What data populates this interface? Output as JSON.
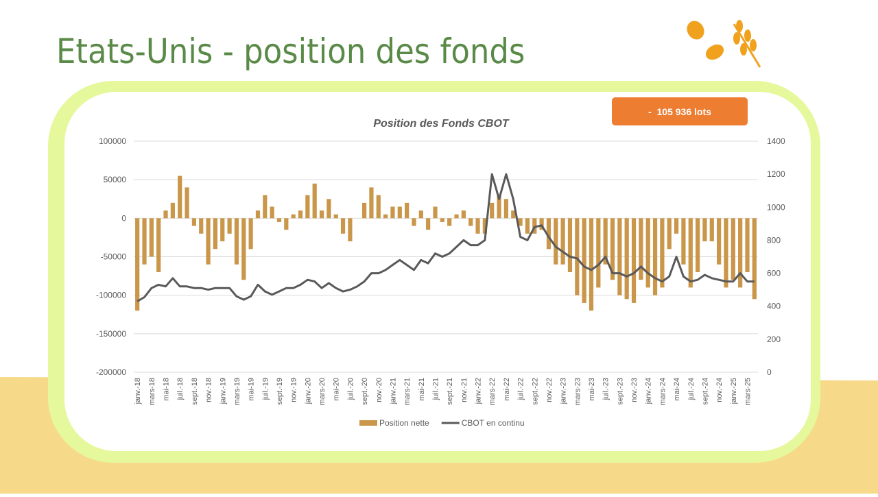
{
  "header": {
    "title": "Etats-Unis - position des fonds",
    "badge": "-  105 936 lots"
  },
  "chart_data": {
    "type": "combo",
    "title": "Position des Fonds CBOT",
    "categories": [
      "janv.-18",
      null,
      "mars-18",
      null,
      "mai-18",
      null,
      "juil.-18",
      null,
      "sept.-18",
      null,
      "nov.-18",
      null,
      "janv.-19",
      null,
      "mars-19",
      null,
      "mai-19",
      null,
      "juil.-19",
      null,
      "sept.-19",
      null,
      "nov.-19",
      null,
      "janv.-20",
      null,
      "mars-20",
      null,
      "mai-20",
      null,
      "juil.-20",
      null,
      "sept.-20",
      null,
      "nov.-20",
      null,
      "janv.-21",
      null,
      "mars-21",
      null,
      "mai-21",
      null,
      "juil.-21",
      null,
      "sept.-21",
      null,
      "nov.-21",
      null,
      "janv.-22",
      null,
      "mars-22",
      null,
      "mai-22",
      null,
      "juil.-22",
      null,
      "sept.-22",
      null,
      "nov.-22",
      null,
      "janv.-23",
      null,
      "mars-23",
      null,
      "mai-23",
      null,
      "juil.-23",
      null,
      "sept.-23",
      null,
      "nov.-23",
      null,
      "janv.-24",
      null,
      "mars-24",
      null,
      "mai-24",
      null,
      "juil.-24",
      null,
      "sept.-24",
      null,
      "nov.-24",
      null,
      "janv.-25",
      null,
      "mars-25",
      null
    ],
    "series": [
      {
        "name": "Position nette",
        "type": "bar",
        "color": "#c9964a",
        "values": [
          -120000,
          -60000,
          -50000,
          -70000,
          10000,
          20000,
          55000,
          40000,
          -10000,
          -20000,
          -60000,
          -40000,
          -30000,
          -20000,
          -60000,
          -80000,
          -40000,
          10000,
          30000,
          15000,
          -5000,
          -15000,
          5000,
          10000,
          30000,
          45000,
          10000,
          25000,
          5000,
          -20000,
          -30000,
          0,
          20000,
          40000,
          30000,
          5000,
          15000,
          15000,
          20000,
          -10000,
          10000,
          -15000,
          15000,
          -5000,
          -10000,
          5000,
          10000,
          -10000,
          -20000,
          -20000,
          20000,
          30000,
          25000,
          10000,
          -10000,
          -20000,
          -20000,
          -15000,
          -40000,
          -60000,
          -60000,
          -70000,
          -100000,
          -110000,
          -120000,
          -90000,
          -60000,
          -80000,
          -100000,
          -105000,
          -110000,
          -80000,
          -90000,
          -100000,
          -90000,
          -40000,
          -20000,
          -60000,
          -90000,
          -70000,
          -30000,
          -30000,
          -60000,
          -90000,
          -80000,
          -90000,
          -70000,
          -105000
        ]
      },
      {
        "name": "CBOT en continu",
        "type": "line",
        "axis": "y2",
        "color": "#595959",
        "values": [
          430,
          455,
          510,
          530,
          520,
          570,
          520,
          520,
          510,
          510,
          500,
          510,
          510,
          510,
          460,
          440,
          460,
          530,
          490,
          470,
          490,
          510,
          510,
          530,
          560,
          550,
          510,
          540,
          510,
          490,
          500,
          520,
          550,
          600,
          600,
          620,
          650,
          680,
          650,
          620,
          680,
          660,
          720,
          700,
          720,
          760,
          800,
          770,
          770,
          800,
          1200,
          1050,
          1200,
          1050,
          820,
          800,
          880,
          890,
          820,
          760,
          730,
          700,
          690,
          640,
          620,
          650,
          700,
          600,
          600,
          580,
          600,
          640,
          600,
          570,
          550,
          580,
          700,
          580,
          550,
          560,
          590,
          570,
          560,
          550,
          550,
          600,
          550,
          550
        ]
      }
    ],
    "ylim": [
      -200000,
      100000
    ],
    "yticks": [
      -200000,
      -150000,
      -100000,
      -50000,
      0,
      50000,
      100000
    ],
    "y2lim": [
      0,
      1400
    ],
    "y2ticks": [
      0,
      200,
      400,
      600,
      800,
      1000,
      1200,
      1400
    ],
    "grid": true,
    "legend": "bottom"
  }
}
